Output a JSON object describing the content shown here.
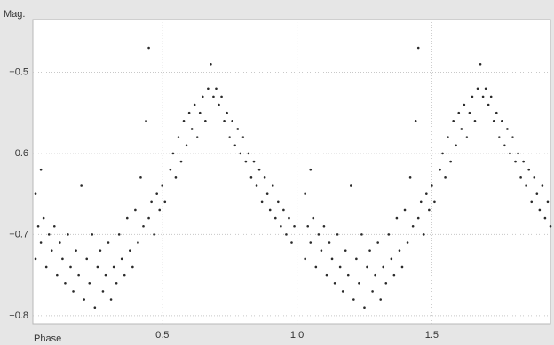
{
  "chart_data": {
    "type": "scatter",
    "y_label": "Mag.",
    "x_label": "Phase",
    "xlim": [
      0.02,
      1.94
    ],
    "ylim": [
      0.435,
      0.81
    ],
    "y_inverted": true,
    "xticks": [
      0.5,
      {
        "value": 1,
        "label": "1.0"
      },
      1.5
    ],
    "yticks": [
      {
        "value": 0.5,
        "label": "+0.5"
      },
      {
        "value": 0.6,
        "label": "+0.6"
      },
      {
        "value": 0.7,
        "label": "+0.7"
      },
      {
        "value": 0.8,
        "label": "+0.8"
      }
    ],
    "grid": true,
    "color": "#2a2a2a",
    "x": [
      0.03,
      0.03,
      0.04,
      0.05,
      0.05,
      0.06,
      0.07,
      0.08,
      0.09,
      0.1,
      0.11,
      0.12,
      0.13,
      0.14,
      0.15,
      0.16,
      0.17,
      0.18,
      0.19,
      0.2,
      0.21,
      0.22,
      0.23,
      0.24,
      0.25,
      0.26,
      0.27,
      0.28,
      0.29,
      0.3,
      0.31,
      0.32,
      0.33,
      0.34,
      0.35,
      0.36,
      0.37,
      0.38,
      0.39,
      0.4,
      0.41,
      0.42,
      0.43,
      0.44,
      0.45,
      0.45,
      0.46,
      0.47,
      0.48,
      0.49,
      0.5,
      0.51,
      0.53,
      0.54,
      0.55,
      0.56,
      0.57,
      0.58,
      0.59,
      0.6,
      0.61,
      0.62,
      0.63,
      0.64,
      0.65,
      0.66,
      0.67,
      0.68,
      0.69,
      0.7,
      0.71,
      0.72,
      0.73,
      0.74,
      0.75,
      0.76,
      0.77,
      0.78,
      0.79,
      0.8,
      0.81,
      0.82,
      0.83,
      0.84,
      0.85,
      0.86,
      0.87,
      0.88,
      0.89,
      0.9,
      0.91,
      0.92,
      0.93,
      0.94,
      0.95,
      0.96,
      0.97,
      0.98,
      0.99,
      1.03,
      1.03,
      1.04,
      1.05,
      1.05,
      1.06,
      1.07,
      1.08,
      1.09,
      1.1,
      1.11,
      1.12,
      1.13,
      1.14,
      1.15,
      1.16,
      1.17,
      1.18,
      1.19,
      1.2,
      1.21,
      1.22,
      1.23,
      1.24,
      1.25,
      1.26,
      1.27,
      1.28,
      1.29,
      1.3,
      1.31,
      1.32,
      1.33,
      1.34,
      1.35,
      1.36,
      1.37,
      1.38,
      1.39,
      1.4,
      1.41,
      1.42,
      1.43,
      1.44,
      1.45,
      1.45,
      1.46,
      1.47,
      1.48,
      1.49,
      1.5,
      1.51,
      1.53,
      1.54,
      1.55,
      1.56,
      1.57,
      1.58,
      1.59,
      1.6,
      1.61,
      1.62,
      1.63,
      1.64,
      1.65,
      1.66,
      1.67,
      1.68,
      1.69,
      1.7,
      1.71,
      1.72,
      1.73,
      1.74,
      1.75,
      1.76,
      1.77,
      1.78,
      1.79,
      1.8,
      1.81,
      1.82,
      1.83,
      1.84,
      1.85,
      1.86,
      1.87,
      1.88,
      1.89,
      1.9,
      1.91,
      1.92,
      1.93,
      1.94
    ],
    "values": [
      0.65,
      0.73,
      0.69,
      0.71,
      0.62,
      0.68,
      0.74,
      0.7,
      0.72,
      0.69,
      0.75,
      0.71,
      0.73,
      0.76,
      0.7,
      0.74,
      0.77,
      0.72,
      0.75,
      0.64,
      0.78,
      0.73,
      0.76,
      0.7,
      0.79,
      0.74,
      0.72,
      0.77,
      0.75,
      0.71,
      0.78,
      0.74,
      0.76,
      0.7,
      0.73,
      0.75,
      0.68,
      0.72,
      0.74,
      0.67,
      0.71,
      0.63,
      0.69,
      0.56,
      0.47,
      0.68,
      0.66,
      0.7,
      0.65,
      0.67,
      0.64,
      0.66,
      0.62,
      0.6,
      0.63,
      0.58,
      0.61,
      0.56,
      0.59,
      0.55,
      0.57,
      0.54,
      0.58,
      0.55,
      0.53,
      0.56,
      0.52,
      0.49,
      0.53,
      0.52,
      0.54,
      0.53,
      0.56,
      0.55,
      0.58,
      0.56,
      0.59,
      0.57,
      0.6,
      0.58,
      0.61,
      0.6,
      0.63,
      0.61,
      0.64,
      0.62,
      0.66,
      0.63,
      0.65,
      0.67,
      0.64,
      0.68,
      0.66,
      0.69,
      0.67,
      0.7,
      0.68,
      0.71,
      0.69,
      0.65,
      0.73,
      0.69,
      0.71,
      0.62,
      0.68,
      0.74,
      0.7,
      0.72,
      0.69,
      0.75,
      0.71,
      0.73,
      0.76,
      0.7,
      0.74,
      0.77,
      0.72,
      0.75,
      0.64,
      0.78,
      0.73,
      0.76,
      0.7,
      0.79,
      0.74,
      0.72,
      0.77,
      0.75,
      0.71,
      0.78,
      0.74,
      0.76,
      0.7,
      0.73,
      0.75,
      0.68,
      0.72,
      0.74,
      0.67,
      0.71,
      0.63,
      0.69,
      0.56,
      0.47,
      0.68,
      0.66,
      0.7,
      0.65,
      0.67,
      0.64,
      0.66,
      0.62,
      0.6,
      0.63,
      0.58,
      0.61,
      0.56,
      0.59,
      0.55,
      0.57,
      0.54,
      0.58,
      0.55,
      0.53,
      0.56,
      0.52,
      0.49,
      0.53,
      0.52,
      0.54,
      0.53,
      0.56,
      0.55,
      0.58,
      0.56,
      0.59,
      0.57,
      0.6,
      0.58,
      0.61,
      0.6,
      0.63,
      0.61,
      0.64,
      0.62,
      0.66,
      0.63,
      0.65,
      0.67,
      0.64,
      0.68,
      0.66,
      0.69
    ]
  }
}
